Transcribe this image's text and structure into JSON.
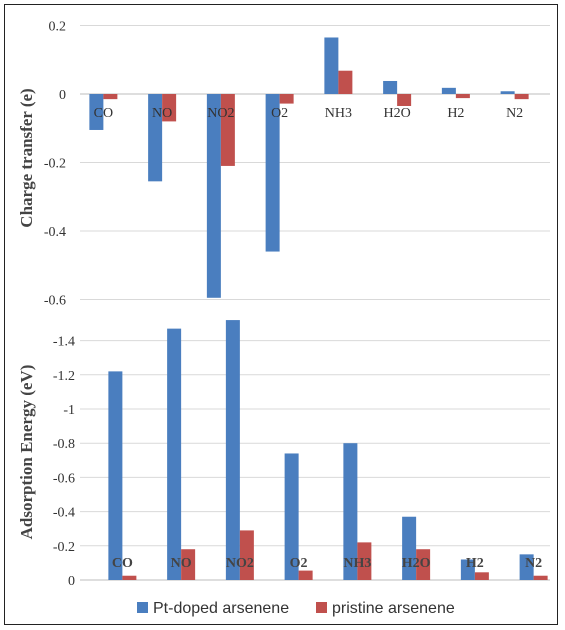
{
  "chart_data": [
    {
      "type": "bar",
      "ylabel": "Charge transfer (e)",
      "ylim": [
        -0.6,
        0.2
      ],
      "yticks": [
        "0.2",
        "0",
        "-0.2",
        "-0.4",
        "-0.6"
      ],
      "categories": [
        "CO",
        "NO",
        "NO2",
        "O2",
        "NH3",
        "H2O",
        "H2",
        "N2"
      ],
      "series": [
        {
          "name": "Pt-doped arsenene",
          "color": "#4a7ebf",
          "values": [
            -0.105,
            -0.255,
            -0.595,
            -0.46,
            0.165,
            0.038,
            0.018,
            0.008
          ]
        },
        {
          "name": "pristine arsenene",
          "color": "#c0504d",
          "values": [
            -0.015,
            -0.08,
            -0.21,
            -0.028,
            0.068,
            -0.035,
            -0.012,
            -0.015
          ]
        }
      ],
      "grid": true
    },
    {
      "type": "bar",
      "ylabel": "Adsorption Energy (eV)",
      "ylim": [
        0,
        -1.5
      ],
      "inverted": true,
      "yticks": [
        "-1.4",
        "-1.2",
        "-1",
        "-0.8",
        "-0.6",
        "-0.4",
        "-0.2",
        "0"
      ],
      "categories": [
        "CO",
        "NO",
        "NO2",
        "O2",
        "NH3",
        "H2O",
        "H2",
        "N2"
      ],
      "series": [
        {
          "name": "Pt-doped arsenene",
          "color": "#4a7ebf",
          "values": [
            -1.22,
            -1.47,
            -1.52,
            -0.74,
            -0.8,
            -0.37,
            -0.12,
            -0.15
          ]
        },
        {
          "name": "pristine arsenene",
          "color": "#c0504d",
          "values": [
            -0.025,
            -0.18,
            -0.29,
            -0.055,
            -0.22,
            -0.18,
            -0.045,
            -0.025
          ]
        }
      ],
      "grid": true
    }
  ],
  "legend": {
    "position": "bottom",
    "items": [
      {
        "label": "Pt-doped arsenene",
        "color": "#4a7ebf"
      },
      {
        "label": "pristine arsenene",
        "color": "#c0504d"
      }
    ]
  }
}
